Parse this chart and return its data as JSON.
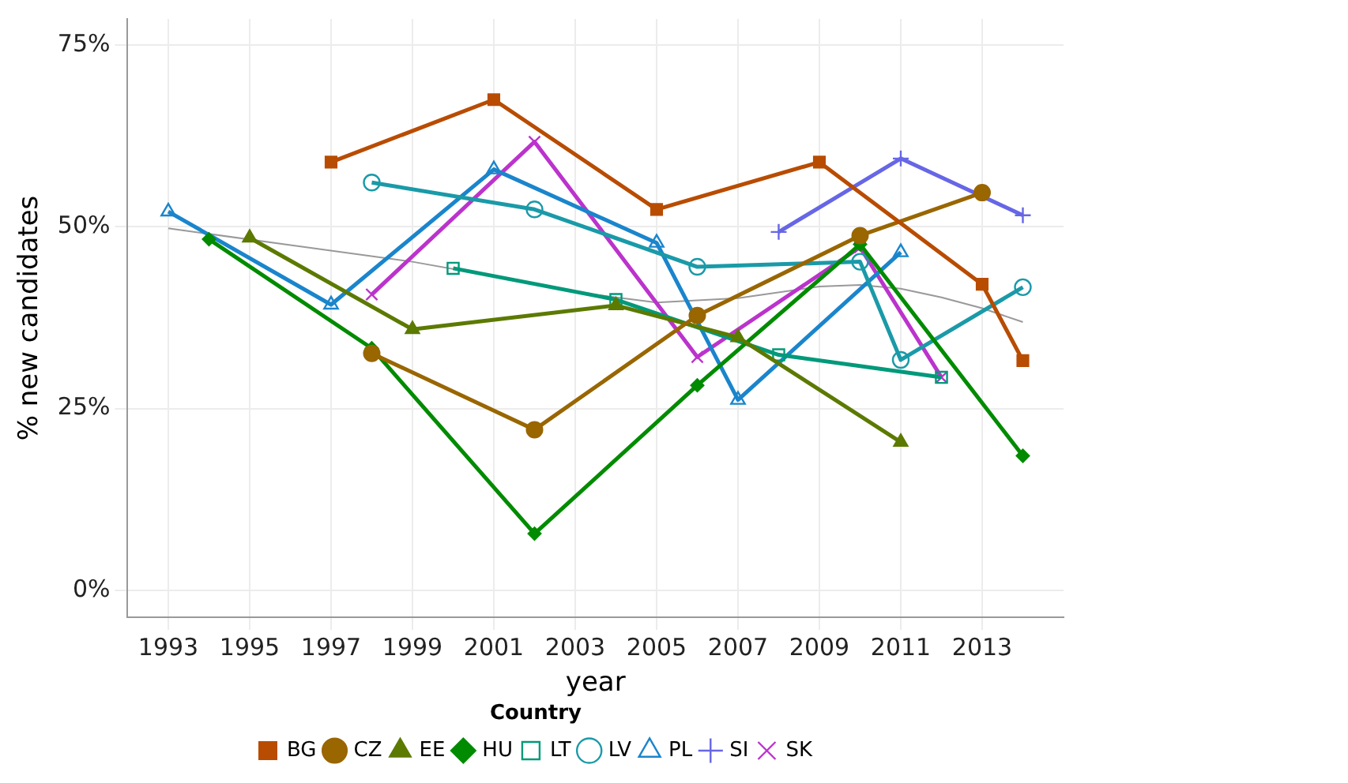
{
  "chart_data": {
    "type": "line",
    "xlabel": "year",
    "ylabel": "% new candidates",
    "legend_title": "Country",
    "legend": "bottom",
    "grid": true,
    "xlim": [
      1992,
      2015
    ],
    "xticks": [
      1993,
      1995,
      1997,
      1999,
      2001,
      2003,
      2005,
      2007,
      2009,
      2011,
      2013
    ],
    "ylim": [
      -3.7,
      78.6
    ],
    "yticks": [
      {
        "value": 0,
        "label": "0%"
      },
      {
        "value": 25,
        "label": "25%"
      },
      {
        "value": 50,
        "label": "50%"
      },
      {
        "value": 75,
        "label": "75%"
      }
    ],
    "series": [
      {
        "name": "BG",
        "color": "#b84c00",
        "marker": "square",
        "x": [
          1997,
          2001,
          2005,
          2009,
          2013,
          2014
        ],
        "values": [
          58.9,
          67.5,
          52.4,
          58.9,
          42.1,
          31.6
        ]
      },
      {
        "name": "CZ",
        "color": "#996600",
        "marker": "circle",
        "x": [
          1998,
          2002,
          2006,
          2010,
          2013
        ],
        "values": [
          32.6,
          22.1,
          37.8,
          48.8,
          54.7
        ]
      },
      {
        "name": "EE",
        "color": "#5c7a00",
        "marker": "triangle",
        "x": [
          1995,
          1999,
          2004,
          2007,
          2011
        ],
        "values": [
          48.5,
          35.9,
          39.2,
          34.8,
          20.4
        ]
      },
      {
        "name": "HU",
        "color": "#008b00",
        "marker": "diamond",
        "x": [
          1994,
          1998,
          2002,
          2006,
          2010,
          2014
        ],
        "values": [
          48.3,
          33.3,
          7.8,
          28.2,
          47.6,
          18.5
        ]
      },
      {
        "name": "LT",
        "color": "#00997a",
        "marker": "square-open",
        "x": [
          2000,
          2004,
          2008,
          2012
        ],
        "values": [
          44.3,
          40.0,
          32.4,
          29.3
        ]
      },
      {
        "name": "LV",
        "color": "#1a9aa8",
        "marker": "circle-open",
        "x": [
          1998,
          2002,
          2006,
          2010,
          2011,
          2014
        ],
        "values": [
          56.1,
          52.4,
          44.5,
          45.2,
          31.7,
          41.7
        ]
      },
      {
        "name": "PL",
        "color": "#1a85cc",
        "marker": "triangle-open",
        "x": [
          1993,
          1997,
          2001,
          2005,
          2007,
          2011
        ],
        "values": [
          52.1,
          39.3,
          57.9,
          47.8,
          26.2,
          46.5
        ]
      },
      {
        "name": "SI",
        "color": "#6666e6",
        "marker": "cross",
        "x": [
          2008,
          2011,
          2014
        ],
        "values": [
          49.3,
          59.4,
          51.6
        ]
      },
      {
        "name": "SK",
        "color": "#bb33cc",
        "marker": "x",
        "x": [
          1998,
          2002,
          2006,
          2010,
          2012
        ],
        "values": [
          40.7,
          61.7,
          32.1,
          47.2,
          29.3
        ]
      },
      {
        "color": "#999999",
        "marker": "none",
        "x": [
          1993,
          1996,
          1999,
          2001,
          2003,
          2005,
          2007,
          2009,
          2010,
          2011,
          2012,
          2013,
          2014
        ],
        "values": [
          49.8,
          47.5,
          45.2,
          43.2,
          41.0,
          39.6,
          40.2,
          41.8,
          42.0,
          41.5,
          40.3,
          38.8,
          36.9
        ]
      }
    ]
  }
}
